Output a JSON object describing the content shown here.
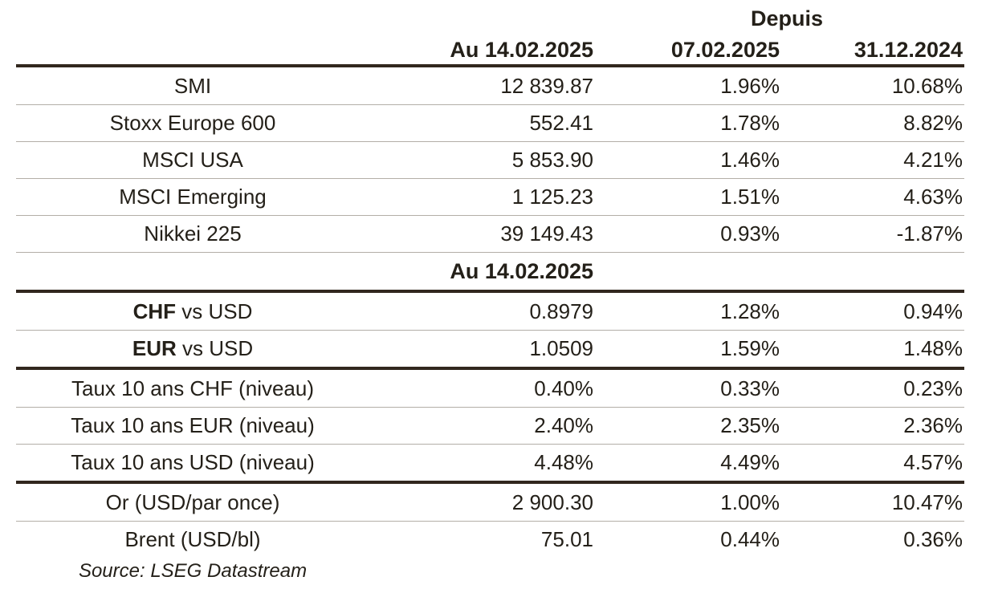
{
  "colors": {
    "background": "#ffffff",
    "text": "#242019",
    "thick_rule": "#31271e",
    "thin_rule": "#b3aea7"
  },
  "table": {
    "header": {
      "depuis": "Depuis",
      "col_value": "Au 14.02.2025",
      "col_pct1": "07.02.2025",
      "col_pct2": "31.12.2024"
    },
    "sections": [
      {
        "name": "indices",
        "type": "rows",
        "divider_after": "thin",
        "rows": [
          {
            "label": "SMI",
            "value": "12 839.87",
            "pct1": "1.96%",
            "pct2": "10.68%"
          },
          {
            "label": "Stoxx Europe 600",
            "value": "552.41",
            "pct1": "1.78%",
            "pct2": "8.82%"
          },
          {
            "label": "MSCI USA",
            "value": "5 853.90",
            "pct1": "1.46%",
            "pct2": "4.21%"
          },
          {
            "label": "MSCI Emerging",
            "value": "1 125.23",
            "pct1": "1.51%",
            "pct2": "4.63%"
          },
          {
            "label": "Nikkei 225",
            "value": "39 149.43",
            "pct1": "0.93%",
            "pct2": "-1.87%"
          }
        ]
      },
      {
        "name": "mid-subheader",
        "type": "subheader",
        "label": "Au 14.02.2025",
        "divider_after": "thick"
      },
      {
        "name": "currencies",
        "type": "rows",
        "divider_after": "thick",
        "rows": [
          {
            "label_strong": "CHF",
            "label": " vs USD",
            "value": "0.8979",
            "pct1": "1.28%",
            "pct2": "0.94%"
          },
          {
            "label_strong": "EUR",
            "label": " vs USD",
            "value": "1.0509",
            "pct1": "1.59%",
            "pct2": "1.48%"
          }
        ]
      },
      {
        "name": "rates",
        "type": "rows",
        "divider_after": "thick",
        "rows": [
          {
            "label": "Taux 10 ans CHF (niveau)",
            "value": "0.40%",
            "pct1": "0.33%",
            "pct2": "0.23%"
          },
          {
            "label": "Taux 10 ans EUR (niveau)",
            "value": "2.40%",
            "pct1": "2.35%",
            "pct2": "2.36%"
          },
          {
            "label": "Taux 10 ans USD (niveau)",
            "value": "4.48%",
            "pct1": "4.49%",
            "pct2": "4.57%"
          }
        ]
      },
      {
        "name": "commodities",
        "type": "rows",
        "divider_after": "none",
        "rows": [
          {
            "label": "Or (USD/par once)",
            "value": "2 900.30",
            "pct1": "1.00%",
            "pct2": "10.47%"
          },
          {
            "label": "Brent (USD/bl)",
            "value": "75.01",
            "pct1": "0.44%",
            "pct2": "0.36%"
          }
        ]
      }
    ],
    "source": "Source: LSEG Datastream"
  },
  "chart_data": {
    "type": "table",
    "title": "",
    "columns": [
      "",
      "Au 14.02.2025",
      "Depuis 07.02.2025",
      "Depuis 31.12.2024"
    ],
    "rows": [
      [
        "SMI",
        "12 839.87",
        "1.96%",
        "10.68%"
      ],
      [
        "Stoxx Europe 600",
        "552.41",
        "1.78%",
        "8.82%"
      ],
      [
        "MSCI USA",
        "5 853.90",
        "1.46%",
        "4.21%"
      ],
      [
        "MSCI Emerging",
        "1 125.23",
        "1.51%",
        "4.63%"
      ],
      [
        "Nikkei 225",
        "39 149.43",
        "0.93%",
        "-1.87%"
      ],
      [
        "CHF vs USD",
        "0.8979",
        "1.28%",
        "0.94%"
      ],
      [
        "EUR vs USD",
        "1.0509",
        "1.59%",
        "1.48%"
      ],
      [
        "Taux 10 ans CHF (niveau)",
        "0.40%",
        "0.33%",
        "0.23%"
      ],
      [
        "Taux 10 ans EUR (niveau)",
        "2.40%",
        "2.35%",
        "2.36%"
      ],
      [
        "Taux 10 ans USD (niveau)",
        "4.48%",
        "4.49%",
        "4.57%"
      ],
      [
        "Or (USD/par once)",
        "2 900.30",
        "1.00%",
        "10.47%"
      ],
      [
        "Brent (USD/bl)",
        "75.01",
        "0.44%",
        "0.36%"
      ]
    ],
    "mid_section_header": "Au 14.02.2025",
    "source": "Source: LSEG Datastream"
  }
}
